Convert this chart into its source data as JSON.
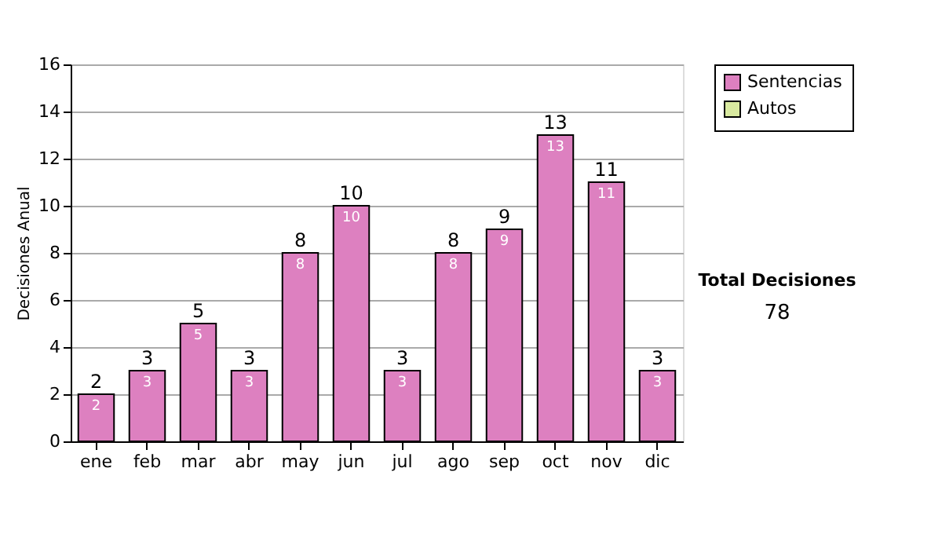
{
  "chart_data": {
    "type": "bar",
    "stacked": true,
    "ylabel": "Decisiones Anual",
    "categories": [
      "ene",
      "feb",
      "mar",
      "abr",
      "may",
      "jun",
      "jul",
      "ago",
      "sep",
      "oct",
      "nov",
      "dic"
    ],
    "series": [
      {
        "name": "Sentencias",
        "color": "#dd80c0",
        "values": [
          2,
          3,
          5,
          3,
          8,
          10,
          3,
          8,
          9,
          13,
          11,
          3
        ],
        "value_labels": [
          "2",
          "3",
          "5",
          "3",
          "8",
          "10",
          "3",
          "8",
          "9",
          "13",
          "11",
          "3"
        ]
      },
      {
        "name": "Autos",
        "color": "#d9eaa0",
        "values": [
          null,
          null,
          null,
          null,
          null,
          null,
          null,
          null,
          null,
          null,
          null,
          null
        ]
      }
    ],
    "totals": [
      "2",
      "3",
      "5",
      "3",
      "8",
      "10",
      "3",
      "8",
      "9",
      "13",
      "11",
      "3"
    ],
    "ylim": [
      0,
      16
    ],
    "yticks": [
      0,
      2,
      4,
      6,
      8,
      10,
      12,
      14,
      16
    ],
    "grid": "y",
    "legend": "right",
    "annotations": [
      "Total Decisiones",
      "78"
    ]
  }
}
